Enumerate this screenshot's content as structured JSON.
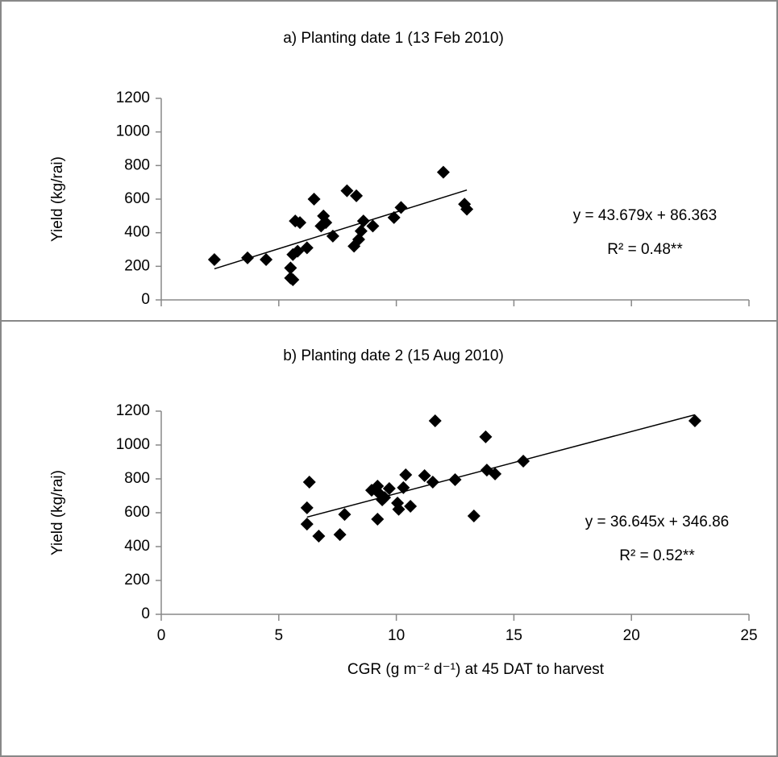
{
  "chart_data": [
    {
      "type": "scatter",
      "title": "a) Planting date 1 (13 Feb 2010)",
      "ylabel": "Yield (kg/rai)",
      "color": "#000000",
      "x": [
        2.26,
        3.67,
        4.46,
        5.5,
        5.5,
        5.6,
        5.6,
        5.7,
        5.8,
        5.9,
        6.2,
        6.5,
        6.8,
        6.9,
        7.0,
        7.3,
        7.9,
        8.2,
        8.3,
        8.4,
        8.5,
        8.6,
        9.0,
        9.9,
        10.2,
        12.0,
        12.9,
        13.0
      ],
      "values": [
        240,
        250,
        240,
        190,
        130,
        120,
        270,
        470,
        290,
        460,
        310,
        600,
        440,
        500,
        460,
        380,
        650,
        320,
        620,
        360,
        410,
        470,
        440,
        490,
        550,
        760,
        570,
        540
      ],
      "xlim": [
        0,
        25
      ],
      "xticks": [
        0,
        5,
        10,
        15,
        20,
        25
      ],
      "show_xtick_labels": false,
      "ylim": [
        0,
        1200
      ],
      "yticks": [
        0,
        200,
        400,
        600,
        800,
        1000,
        1200
      ],
      "trendline": {
        "slope": 43.679,
        "intercept": 86.363,
        "label": "y = 43.679x + 86.363"
      },
      "r2_label": "R² = 0.48**"
    },
    {
      "type": "scatter",
      "title": "b) Planting date 2 (15 Aug 2010)",
      "ylabel": "Yield (kg/rai)",
      "xlabel": "CGR (g m⁻² d⁻¹) at 45 DAT to harvest",
      "color": "#000000",
      "x": [
        6.3,
        6.2,
        6.2,
        6.7,
        7.6,
        7.8,
        8.95,
        9.2,
        9.3,
        9.2,
        9.4,
        9.5,
        9.7,
        10.05,
        10.1,
        10.3,
        10.4,
        10.6,
        11.2,
        11.55,
        11.65,
        12.5,
        13.3,
        13.8,
        13.85,
        14.2,
        15.4,
        22.7
      ],
      "values": [
        781,
        629,
        533,
        462,
        471,
        590,
        733,
        757,
        710,
        562,
        676,
        690,
        743,
        657,
        620,
        748,
        824,
        638,
        819,
        781,
        1143,
        795,
        581,
        1048,
        852,
        829,
        905,
        1143
      ],
      "xlim": [
        0,
        25
      ],
      "xticks": [
        0,
        5,
        10,
        15,
        20,
        25
      ],
      "show_xtick_labels": true,
      "ylim": [
        0,
        1200
      ],
      "yticks": [
        0,
        200,
        400,
        600,
        800,
        1000,
        1200
      ],
      "trendline": {
        "slope": 36.645,
        "intercept": 346.86,
        "label": "y = 36.645x + 346.86"
      },
      "r2_label": "R² = 0.52**"
    }
  ]
}
